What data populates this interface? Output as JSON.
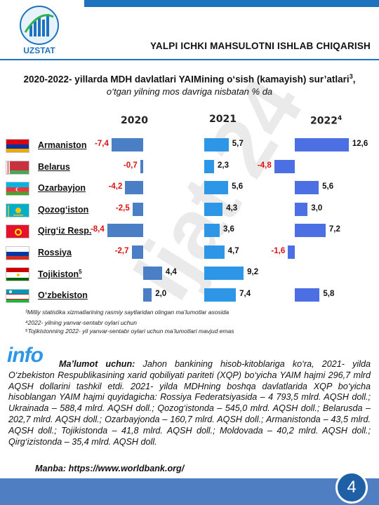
{
  "header": {
    "logo_text": "UZSTAT",
    "title": "YALPI ICHKI MAHSULOTNI ISHLAB CHIQARISH"
  },
  "chart_data": {
    "type": "bar",
    "title": "2020-2022- yillarda MDH davlatlari YAIMining o‘sish (kamayish) sur’atlari",
    "title_sup": "3",
    "subtitle": "o‘tgan yilning mos davriga nisbatan % da",
    "panels": [
      {
        "label": "2020",
        "sup": ""
      },
      {
        "label": "2021",
        "sup": ""
      },
      {
        "label": "2022",
        "sup": "4"
      }
    ],
    "categories": [
      "Armaniston",
      "Belarus",
      "Ozarbayjon",
      "Qozog‘iston",
      "Qirg‘iz Resp.",
      "Rossiya",
      "Tojikiston",
      "O‘zbekiston"
    ],
    "category_sup": [
      "",
      "",
      "",
      "",
      "",
      "",
      "5",
      ""
    ],
    "series": [
      {
        "values": [
          -7.4,
          -0.7,
          -4.2,
          -2.5,
          -8.4,
          -2.7,
          4.4,
          2.0
        ],
        "labels": [
          "-7,4",
          "-0,7",
          "-4,2",
          "-2,5",
          "-8,4",
          "-2,7",
          "4,4",
          "2,0"
        ]
      },
      {
        "values": [
          5.7,
          2.3,
          5.6,
          4.3,
          3.6,
          4.7,
          9.2,
          7.4
        ],
        "labels": [
          "5,7",
          "2,3",
          "5,6",
          "4,3",
          "3,6",
          "4,7",
          "9,2",
          "7,4"
        ]
      },
      {
        "values": [
          12.6,
          -4.8,
          5.6,
          3.0,
          7.2,
          -1.6,
          null,
          5.8
        ],
        "labels": [
          "12,6",
          "-4,8",
          "5,6",
          "3,0",
          "7,2",
          "-1,6",
          "",
          "5,8"
        ]
      }
    ],
    "negative_label_color": "#e01010",
    "colors": [
      "#4a7fc6",
      "#2d96e6",
      "#4d6fe4"
    ]
  },
  "notes": [
    "³Milliy statistika xizmatlarining rasmiy saytlaridan olingan ma’lumotlar asosida",
    "⁴2022- yilning yanvar-sentabr oylari uchun",
    "⁵Tojikistonning 2022- yil yanvar-sentabr oylari uchun ma’lumotlari mavjud emas"
  ],
  "info": {
    "logo": "info",
    "lead": "Ma’lumot uchun:",
    "body": "Jahon bankining hisob-kitoblariga ko‘ra, 2021- yilda O‘zbekiston Respublikasining xarid qobiliyati pariteti (XQP) bo‘yicha YAIM hajmi 296,7 mlrd AQSH dollarini tashkil etdi. 2021- yilda MDHning boshqa davlatlarida XQP bo‘yicha hisoblangan YAIM hajmi quyidagicha: Rossiya Federatsiyasida – 4 793,5 mlrd. AQSH doll.; Ukrainada – 588,4 mlrd. AQSH doll.; Qozog‘istonda – 545,0 mlrd. AQSH doll.; Belarusda – 202,7 mlrd. AQSH doll.; Ozarbayjonda – 160,7 mlrd. AQSH doll.; Armanistonda – 43,5 mlrd. AQSH doll.; Tojikistonda – 41,8 mlrd. AQSH doll.; Moldovada – 40,2 mlrd. AQSH doll.; Qirg‘izistonda – 35,4 mlrd. AQSH doll.",
    "source": "Manba: https://www.worldbank.org/"
  },
  "footer": {
    "page_number": "4"
  },
  "watermark": "Ijat 24",
  "flag_icons": [
    "armenia-flag-icon",
    "belarus-flag-icon",
    "azerbaijan-flag-icon",
    "kazakhstan-flag-icon",
    "kyrgyzstan-flag-icon",
    "russia-flag-icon",
    "tajikistan-flag-icon",
    "uzbekistan-flag-icon"
  ]
}
